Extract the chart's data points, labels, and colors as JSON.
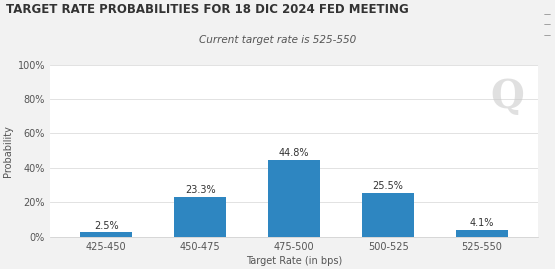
{
  "title": "TARGET RATE PROBABILITIES FOR 18 DIC 2024 FED MEETING",
  "subtitle": "Current target rate is 525-550",
  "categories": [
    "425-450",
    "450-475",
    "475-500",
    "500-525",
    "525-550"
  ],
  "values": [
    2.5,
    23.3,
    44.8,
    25.5,
    4.1
  ],
  "bar_color": "#2e86c1",
  "xlabel": "Target Rate (in bps)",
  "ylabel": "Probability",
  "ylim": [
    0,
    100
  ],
  "yticks": [
    0,
    20,
    40,
    60,
    80,
    100
  ],
  "ytick_labels": [
    "0%",
    "20%",
    "40%",
    "60%",
    "80%",
    "100%"
  ],
  "background_color": "#f2f2f2",
  "plot_bg_color": "#ffffff",
  "title_fontsize": 8.5,
  "subtitle_fontsize": 7.5,
  "label_fontsize": 7,
  "bar_label_fontsize": 7,
  "watermark_text": "Q",
  "watermark_color": "#cccccc",
  "grid_color": "#dddddd",
  "menu_icon_color": "#555555"
}
